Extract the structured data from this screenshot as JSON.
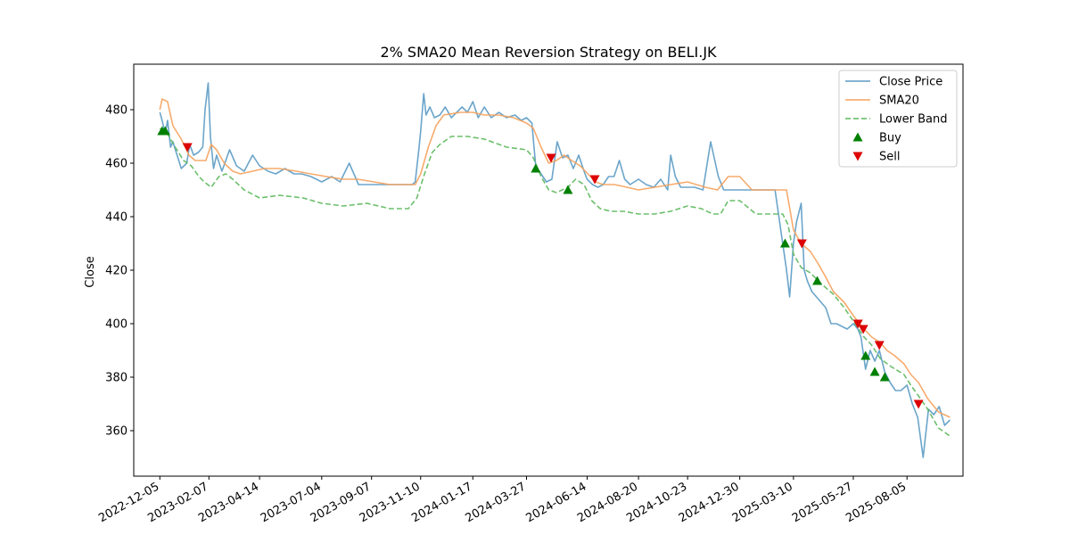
{
  "chart_data": {
    "type": "line",
    "title": "2% SMA20 Mean Reversion Strategy on BELI.JK",
    "xlabel": "",
    "ylabel": "Close",
    "x_ticks": [
      "2022-12-05",
      "2023-02-07",
      "2023-04-14",
      "2023-07-04",
      "2023-09-07",
      "2023-11-10",
      "2024-01-17",
      "2024-03-27",
      "2024-06-14",
      "2024-08-20",
      "2024-10-23",
      "2024-12-30",
      "2025-03-10",
      "2025-05-27",
      "2025-08-05"
    ],
    "xlim": [
      "2022-11-01",
      "2025-10-17"
    ],
    "ylim": [
      343,
      497
    ],
    "y_ticks": [
      360,
      380,
      400,
      420,
      440,
      460,
      480
    ],
    "grid": false,
    "legend_position": "top-right",
    "series": [
      {
        "name": "Close Price",
        "kind": "line",
        "color": "#5b9bc4",
        "x": [
          "2022-12-05",
          "2022-12-08",
          "2022-12-12",
          "2022-12-15",
          "2022-12-19",
          "2022-12-22",
          "2023-01-02",
          "2023-01-09",
          "2023-01-13",
          "2023-01-18",
          "2023-01-24",
          "2023-01-30",
          "2023-02-02",
          "2023-02-06",
          "2023-02-09",
          "2023-02-13",
          "2023-02-17",
          "2023-02-24",
          "2023-03-06",
          "2023-03-15",
          "2023-03-25",
          "2023-04-05",
          "2023-04-14",
          "2023-04-25",
          "2023-05-05",
          "2023-05-17",
          "2023-05-29",
          "2023-06-08",
          "2023-06-20",
          "2023-07-04",
          "2023-07-17",
          "2023-07-28",
          "2023-08-09",
          "2023-08-21",
          "2023-09-01",
          "2023-09-13",
          "2023-09-25",
          "2023-10-06",
          "2023-10-16",
          "2023-10-23",
          "2023-10-30",
          "2023-11-03",
          "2023-11-08",
          "2023-11-10",
          "2023-11-14",
          "2023-11-17",
          "2023-11-22",
          "2023-11-28",
          "2023-12-05",
          "2023-12-12",
          "2023-12-20",
          "2024-01-03",
          "2024-01-10",
          "2024-01-17",
          "2024-01-24",
          "2024-02-01",
          "2024-02-10",
          "2024-02-20",
          "2024-03-01",
          "2024-03-12",
          "2024-03-20",
          "2024-03-27",
          "2024-04-03",
          "2024-04-08",
          "2024-04-15",
          "2024-04-22",
          "2024-04-29",
          "2024-05-06",
          "2024-05-13",
          "2024-05-20",
          "2024-05-27",
          "2024-06-03",
          "2024-06-10",
          "2024-06-14",
          "2024-06-21",
          "2024-06-28",
          "2024-07-05",
          "2024-07-12",
          "2024-07-19",
          "2024-07-26",
          "2024-08-02",
          "2024-08-09",
          "2024-08-20",
          "2024-08-30",
          "2024-09-09",
          "2024-09-18",
          "2024-09-27",
          "2024-10-01",
          "2024-10-07",
          "2024-10-14",
          "2024-10-23",
          "2024-11-01",
          "2024-11-12",
          "2024-11-22",
          "2024-12-02",
          "2024-12-09",
          "2024-12-13",
          "2024-12-19",
          "2024-12-30",
          "2025-01-10",
          "2025-01-20",
          "2025-02-01",
          "2025-02-14",
          "2025-02-24",
          "2025-03-01",
          "2025-03-05",
          "2025-03-10",
          "2025-03-14",
          "2025-03-20",
          "2025-03-24",
          "2025-03-28",
          "2025-04-03",
          "2025-04-09",
          "2025-04-15",
          "2025-04-21",
          "2025-04-28",
          "2025-05-05",
          "2025-05-12",
          "2025-05-19",
          "2025-05-27",
          "2025-06-02",
          "2025-06-06",
          "2025-06-12",
          "2025-06-18",
          "2025-06-24",
          "2025-06-30",
          "2025-07-07",
          "2025-07-14",
          "2025-07-21",
          "2025-07-28",
          "2025-08-05",
          "2025-08-12",
          "2025-08-19",
          "2025-08-26",
          "2025-09-02",
          "2025-09-09",
          "2025-09-16",
          "2025-09-23",
          "2025-09-30"
        ],
        "values": [
          479,
          476,
          471,
          476,
          466,
          468,
          458,
          460,
          467,
          463,
          464,
          466,
          480,
          490,
          470,
          458,
          463,
          457,
          465,
          459,
          457,
          463,
          459,
          457,
          456,
          458,
          456,
          456,
          455,
          453,
          455,
          453,
          460,
          452,
          452,
          452,
          452,
          452,
          452,
          452,
          452,
          453,
          466,
          472,
          486,
          478,
          481,
          477,
          478,
          481,
          477,
          481,
          479,
          483,
          477,
          481,
          477,
          479,
          477,
          478,
          476,
          477,
          475,
          459,
          456,
          453,
          454,
          468,
          462,
          463,
          458,
          463,
          457,
          454,
          452,
          451,
          452,
          455,
          455,
          461,
          454,
          452,
          454,
          452,
          451,
          454,
          450,
          463,
          455,
          451,
          451,
          451,
          450,
          468,
          455,
          450,
          450,
          450,
          450,
          450,
          450,
          450,
          450,
          430,
          420,
          410,
          430,
          438,
          445,
          420,
          416,
          412,
          410,
          408,
          406,
          400,
          400,
          399,
          398,
          400,
          398,
          395,
          383,
          390,
          386,
          390,
          382,
          378,
          375,
          375,
          377,
          370,
          365,
          350,
          368,
          366,
          369,
          362,
          364
        ]
      },
      {
        "name": "SMA20",
        "kind": "line",
        "color": "#f5a25d",
        "x": [
          "2022-12-05",
          "2022-12-08",
          "2022-12-15",
          "2022-12-22",
          "2023-01-02",
          "2023-01-12",
          "2023-01-20",
          "2023-01-27",
          "2023-02-03",
          "2023-02-10",
          "2023-02-17",
          "2023-02-27",
          "2023-03-10",
          "2023-03-20",
          "2023-04-05",
          "2023-04-20",
          "2023-05-10",
          "2023-06-01",
          "2023-06-20",
          "2023-07-10",
          "2023-08-01",
          "2023-08-20",
          "2023-09-10",
          "2023-10-01",
          "2023-10-20",
          "2023-11-03",
          "2023-11-10",
          "2023-11-20",
          "2023-11-30",
          "2023-12-10",
          "2024-01-01",
          "2024-01-17",
          "2024-02-01",
          "2024-02-20",
          "2024-03-10",
          "2024-03-27",
          "2024-04-05",
          "2024-04-15",
          "2024-04-25",
          "2024-05-05",
          "2024-05-15",
          "2024-05-25",
          "2024-06-05",
          "2024-06-15",
          "2024-06-25",
          "2024-07-05",
          "2024-07-20",
          "2024-08-05",
          "2024-08-20",
          "2024-09-10",
          "2024-10-01",
          "2024-10-23",
          "2024-11-15",
          "2024-12-01",
          "2024-12-15",
          "2024-12-30",
          "2025-01-15",
          "2025-02-01",
          "2025-02-20",
          "2025-03-01",
          "2025-03-10",
          "2025-03-20",
          "2025-04-01",
          "2025-04-10",
          "2025-04-20",
          "2025-05-01",
          "2025-05-15",
          "2025-05-27",
          "2025-06-10",
          "2025-06-20",
          "2025-07-01",
          "2025-07-10",
          "2025-07-20",
          "2025-08-01",
          "2025-08-10",
          "2025-08-20",
          "2025-09-01",
          "2025-09-15",
          "2025-09-30"
        ],
        "values": [
          480,
          484,
          483,
          474,
          469,
          463,
          461,
          461,
          461,
          467,
          465,
          460,
          457,
          456,
          457,
          458,
          458,
          457,
          456,
          455,
          454,
          454,
          453,
          452,
          452,
          452,
          456,
          466,
          474,
          478,
          479,
          479,
          478,
          478,
          477,
          475,
          473,
          466,
          460,
          461,
          463,
          461,
          459,
          456,
          453,
          452,
          452,
          451,
          450,
          451,
          452,
          453,
          451,
          450,
          455,
          455,
          450,
          450,
          450,
          450,
          435,
          430,
          427,
          423,
          418,
          412,
          408,
          403,
          398,
          395,
          393,
          390,
          388,
          385,
          381,
          378,
          372,
          367,
          365
        ]
      },
      {
        "name": "Lower Band",
        "kind": "dashed-line",
        "color": "#5cb85c",
        "x": [
          "2022-12-05",
          "2022-12-15",
          "2022-12-25",
          "2023-01-05",
          "2023-01-15",
          "2023-01-25",
          "2023-02-01",
          "2023-02-10",
          "2023-02-20",
          "2023-03-01",
          "2023-03-10",
          "2023-03-25",
          "2023-04-14",
          "2023-05-10",
          "2023-06-10",
          "2023-07-04",
          "2023-08-01",
          "2023-09-01",
          "2023-10-01",
          "2023-10-25",
          "2023-11-05",
          "2023-11-15",
          "2023-11-25",
          "2023-12-05",
          "2023-12-20",
          "2024-01-10",
          "2024-02-01",
          "2024-03-01",
          "2024-03-27",
          "2024-04-05",
          "2024-04-15",
          "2024-04-25",
          "2024-05-05",
          "2024-05-20",
          "2024-05-30",
          "2024-06-10",
          "2024-06-20",
          "2024-07-01",
          "2024-07-15",
          "2024-08-01",
          "2024-08-20",
          "2024-09-10",
          "2024-10-01",
          "2024-10-23",
          "2024-11-10",
          "2024-11-25",
          "2024-12-05",
          "2024-12-15",
          "2024-12-30",
          "2025-01-20",
          "2025-02-10",
          "2025-02-24",
          "2025-03-03",
          "2025-03-10",
          "2025-03-20",
          "2025-04-01",
          "2025-04-15",
          "2025-05-01",
          "2025-05-15",
          "2025-05-27",
          "2025-06-10",
          "2025-06-20",
          "2025-07-01",
          "2025-07-15",
          "2025-08-01",
          "2025-08-10",
          "2025-08-20",
          "2025-09-01",
          "2025-09-15",
          "2025-09-30"
        ],
        "values": [
          473,
          471,
          466,
          461,
          459,
          455,
          453,
          451,
          455,
          456,
          454,
          450,
          447,
          448,
          447,
          445,
          444,
          445,
          443,
          443,
          447,
          456,
          464,
          467,
          470,
          470,
          469,
          466,
          465,
          462,
          455,
          450,
          449,
          451,
          454,
          452,
          446,
          443,
          442,
          442,
          441,
          441,
          442,
          444,
          443,
          441,
          441,
          446,
          446,
          441,
          441,
          441,
          437,
          426,
          421,
          419,
          415,
          411,
          406,
          401,
          395,
          392,
          387,
          384,
          381,
          377,
          373,
          368,
          361,
          358
        ]
      },
      {
        "name": "Buy",
        "kind": "marker-up",
        "color": "#008000",
        "x": [
          "2022-12-08",
          "2022-12-12",
          "2024-04-08",
          "2024-05-20",
          "2025-02-27",
          "2025-04-10",
          "2025-06-12",
          "2025-06-24",
          "2025-07-07"
        ],
        "values": [
          472,
          472,
          458,
          450,
          430,
          416,
          388,
          382,
          380
        ]
      },
      {
        "name": "Sell",
        "kind": "marker-down",
        "color": "#dd0000",
        "x": [
          "2023-01-10",
          "2024-04-28",
          "2024-06-24",
          "2025-03-21",
          "2025-06-02",
          "2025-06-09",
          "2025-06-30",
          "2025-08-20"
        ],
        "values": [
          466,
          462,
          454,
          430,
          400,
          398,
          392,
          370
        ]
      }
    ]
  }
}
